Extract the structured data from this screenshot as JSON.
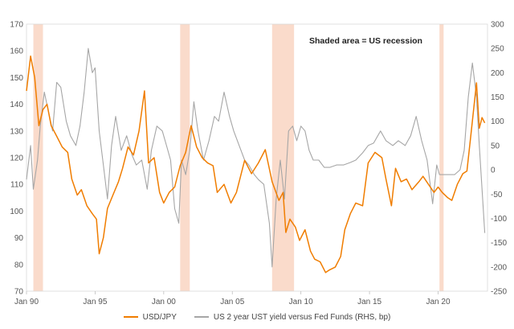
{
  "chart_data": {
    "type": "line",
    "title": "",
    "annotation": "Shaded area = US recession",
    "x_axis": {
      "range": [
        1990.0,
        2023.6
      ],
      "ticks": [
        1990,
        1995,
        2000,
        2005,
        2010,
        2015,
        2020
      ],
      "tick_labels": [
        "Jan 90",
        "Jan 95",
        "Jan 00",
        "Jan 05",
        "Jan 10",
        "Jan 15",
        "Jan 20"
      ]
    },
    "y_left": {
      "range": [
        70,
        170
      ],
      "ticks": [
        70,
        80,
        90,
        100,
        110,
        120,
        130,
        140,
        150,
        160,
        170
      ]
    },
    "y_right": {
      "range": [
        -250,
        300
      ],
      "ticks": [
        -250,
        -200,
        -150,
        -100,
        -50,
        0,
        50,
        100,
        150,
        200,
        250,
        300
      ]
    },
    "grid": false,
    "legend_position": "bottom",
    "recessions": [
      {
        "start": 1990.5,
        "end": 1991.2
      },
      {
        "start": 2001.2,
        "end": 2001.9
      },
      {
        "start": 2007.9,
        "end": 2009.5
      },
      {
        "start": 2020.1,
        "end": 2020.4
      }
    ],
    "series": [
      {
        "name": "USD/JPY",
        "axis": "left",
        "color": "#F07D00",
        "points": [
          [
            1990.0,
            145
          ],
          [
            1990.3,
            158
          ],
          [
            1990.6,
            150
          ],
          [
            1990.9,
            132
          ],
          [
            1991.2,
            138
          ],
          [
            1991.5,
            140
          ],
          [
            1991.8,
            132
          ],
          [
            1992.2,
            128
          ],
          [
            1992.6,
            124
          ],
          [
            1993.0,
            122
          ],
          [
            1993.3,
            112
          ],
          [
            1993.7,
            106
          ],
          [
            1994.0,
            108
          ],
          [
            1994.4,
            102
          ],
          [
            1994.8,
            99
          ],
          [
            1995.1,
            97
          ],
          [
            1995.3,
            84
          ],
          [
            1995.6,
            90
          ],
          [
            1995.9,
            101
          ],
          [
            1996.3,
            106
          ],
          [
            1996.7,
            111
          ],
          [
            1997.0,
            116
          ],
          [
            1997.4,
            124
          ],
          [
            1997.8,
            121
          ],
          [
            1998.2,
            130
          ],
          [
            1998.6,
            145
          ],
          [
            1998.9,
            118
          ],
          [
            1999.3,
            120
          ],
          [
            1999.7,
            107
          ],
          [
            2000.0,
            103
          ],
          [
            2000.4,
            107
          ],
          [
            2000.8,
            109
          ],
          [
            2001.2,
            117
          ],
          [
            2001.6,
            122
          ],
          [
            2002.0,
            132
          ],
          [
            2002.4,
            124
          ],
          [
            2002.8,
            120
          ],
          [
            2003.2,
            118
          ],
          [
            2003.6,
            117
          ],
          [
            2003.9,
            107
          ],
          [
            2004.4,
            110
          ],
          [
            2004.9,
            103
          ],
          [
            2005.3,
            107
          ],
          [
            2005.9,
            119
          ],
          [
            2006.4,
            114
          ],
          [
            2006.9,
            118
          ],
          [
            2007.4,
            123
          ],
          [
            2007.9,
            111
          ],
          [
            2008.4,
            104
          ],
          [
            2008.7,
            107
          ],
          [
            2008.9,
            92
          ],
          [
            2009.2,
            97
          ],
          [
            2009.6,
            94
          ],
          [
            2009.9,
            89
          ],
          [
            2010.3,
            93
          ],
          [
            2010.7,
            85
          ],
          [
            2011.0,
            82
          ],
          [
            2011.4,
            81
          ],
          [
            2011.8,
            77
          ],
          [
            2012.1,
            78
          ],
          [
            2012.5,
            79
          ],
          [
            2012.9,
            83
          ],
          [
            2013.2,
            93
          ],
          [
            2013.6,
            99
          ],
          [
            2014.0,
            103
          ],
          [
            2014.5,
            102
          ],
          [
            2014.9,
            118
          ],
          [
            2015.4,
            122
          ],
          [
            2015.9,
            120
          ],
          [
            2016.2,
            112
          ],
          [
            2016.6,
            102
          ],
          [
            2016.9,
            116
          ],
          [
            2017.3,
            111
          ],
          [
            2017.7,
            112
          ],
          [
            2018.1,
            108
          ],
          [
            2018.6,
            111
          ],
          [
            2018.9,
            113
          ],
          [
            2019.3,
            110
          ],
          [
            2019.7,
            107
          ],
          [
            2020.0,
            109
          ],
          [
            2020.3,
            107
          ],
          [
            2020.7,
            105
          ],
          [
            2021.0,
            104
          ],
          [
            2021.4,
            110
          ],
          [
            2021.8,
            114
          ],
          [
            2022.1,
            115
          ],
          [
            2022.4,
            129
          ],
          [
            2022.8,
            148
          ],
          [
            2023.0,
            131
          ],
          [
            2023.2,
            135
          ],
          [
            2023.4,
            133
          ]
        ]
      },
      {
        "name": "US 2 year UST yield versus Fed Funds (RHS, bp)",
        "axis": "right",
        "color": "#A6A6A6",
        "points": [
          [
            1990.0,
            -20
          ],
          [
            1990.3,
            50
          ],
          [
            1990.5,
            -40
          ],
          [
            1990.8,
            20
          ],
          [
            1991.0,
            90
          ],
          [
            1991.3,
            160
          ],
          [
            1991.6,
            120
          ],
          [
            1991.9,
            80
          ],
          [
            1992.2,
            180
          ],
          [
            1992.5,
            170
          ],
          [
            1992.9,
            100
          ],
          [
            1993.2,
            70
          ],
          [
            1993.6,
            50
          ],
          [
            1993.9,
            90
          ],
          [
            1994.2,
            160
          ],
          [
            1994.5,
            250
          ],
          [
            1994.8,
            200
          ],
          [
            1995.0,
            210
          ],
          [
            1995.3,
            80
          ],
          [
            1995.6,
            10
          ],
          [
            1995.9,
            -60
          ],
          [
            1996.2,
            50
          ],
          [
            1996.5,
            110
          ],
          [
            1996.9,
            40
          ],
          [
            1997.3,
            70
          ],
          [
            1997.7,
            30
          ],
          [
            1998.0,
            10
          ],
          [
            1998.4,
            20
          ],
          [
            1998.8,
            -40
          ],
          [
            1999.1,
            40
          ],
          [
            1999.5,
            90
          ],
          [
            1999.9,
            80
          ],
          [
            2000.2,
            50
          ],
          [
            2000.5,
            20
          ],
          [
            2000.8,
            -80
          ],
          [
            2001.1,
            -110
          ],
          [
            2001.3,
            20
          ],
          [
            2001.6,
            -10
          ],
          [
            2001.9,
            40
          ],
          [
            2002.2,
            140
          ],
          [
            2002.5,
            80
          ],
          [
            2002.9,
            20
          ],
          [
            2003.3,
            60
          ],
          [
            2003.7,
            110
          ],
          [
            2004.0,
            100
          ],
          [
            2004.4,
            160
          ],
          [
            2004.8,
            110
          ],
          [
            2005.1,
            80
          ],
          [
            2005.5,
            50
          ],
          [
            2005.9,
            20
          ],
          [
            2006.2,
            10
          ],
          [
            2006.6,
            -10
          ],
          [
            2006.9,
            -20
          ],
          [
            2007.3,
            -30
          ],
          [
            2007.7,
            -110
          ],
          [
            2007.9,
            -200
          ],
          [
            2008.2,
            -60
          ],
          [
            2008.5,
            20
          ],
          [
            2008.8,
            -60
          ],
          [
            2009.1,
            80
          ],
          [
            2009.4,
            90
          ],
          [
            2009.7,
            60
          ],
          [
            2010.0,
            90
          ],
          [
            2010.3,
            80
          ],
          [
            2010.6,
            40
          ],
          [
            2010.9,
            20
          ],
          [
            2011.3,
            20
          ],
          [
            2011.7,
            5
          ],
          [
            2012.1,
            5
          ],
          [
            2012.6,
            10
          ],
          [
            2013.1,
            10
          ],
          [
            2013.6,
            15
          ],
          [
            2014.0,
            20
          ],
          [
            2014.5,
            35
          ],
          [
            2014.9,
            50
          ],
          [
            2015.3,
            55
          ],
          [
            2015.8,
            80
          ],
          [
            2016.2,
            60
          ],
          [
            2016.7,
            50
          ],
          [
            2017.1,
            60
          ],
          [
            2017.6,
            50
          ],
          [
            2018.0,
            70
          ],
          [
            2018.4,
            110
          ],
          [
            2018.8,
            60
          ],
          [
            2019.2,
            20
          ],
          [
            2019.6,
            -70
          ],
          [
            2019.9,
            10
          ],
          [
            2020.1,
            -10
          ],
          [
            2020.4,
            -10
          ],
          [
            2020.8,
            -10
          ],
          [
            2021.2,
            -10
          ],
          [
            2021.6,
            0
          ],
          [
            2021.9,
            40
          ],
          [
            2022.2,
            150
          ],
          [
            2022.5,
            220
          ],
          [
            2022.8,
            150
          ],
          [
            2023.0,
            50
          ],
          [
            2023.2,
            -40
          ],
          [
            2023.4,
            -130
          ]
        ]
      }
    ]
  }
}
